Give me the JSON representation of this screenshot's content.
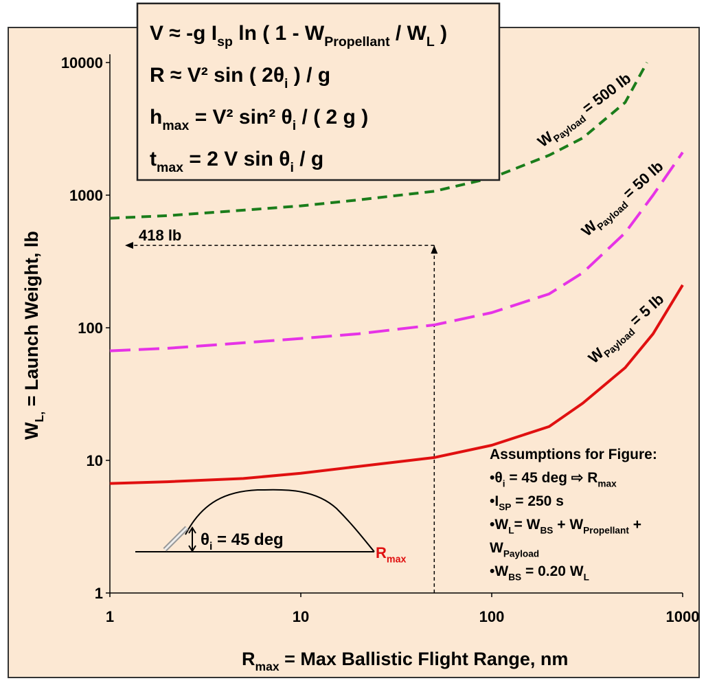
{
  "chart_data": {
    "type": "line",
    "log_x": true,
    "log_y": true,
    "equations": [
      [
        "V ≈ -g I",
        "sp",
        " ln ( 1 - W",
        "Propellant",
        " / W",
        "L",
        " )"
      ],
      [
        "R ≈ V² sin ( 2θ",
        "i",
        " ) / g"
      ],
      [
        "h",
        "max",
        " = V² sin² θ",
        "i",
        " / ( 2 g )"
      ],
      [
        "t",
        "max",
        " = 2 V sin θ",
        "i",
        " / g"
      ]
    ],
    "x_label": [
      "R",
      "max",
      " = Max Ballistic Flight Range, nm"
    ],
    "y_label": [
      "W",
      "L,",
      " = Launch Weight, lb"
    ],
    "xlim": [
      1,
      1000
    ],
    "xticks": [
      1,
      10,
      100,
      1000
    ],
    "ylim": [
      1,
      10000
    ],
    "yticks": [
      1,
      10,
      100,
      1000,
      10000
    ],
    "series": [
      {
        "label": [
          "W",
          "Payload",
          " = 500 lb"
        ],
        "color": "#1b7d1b",
        "dash": "14 9",
        "x": [
          1,
          2,
          5,
          10,
          20,
          50,
          100,
          200,
          300,
          500,
          650
        ],
        "values": [
          670,
          700,
          770,
          830,
          920,
          1070,
          1350,
          2000,
          2700,
          5000,
          10000
        ]
      },
      {
        "label": [
          "W",
          "Payload",
          " = 50 lb"
        ],
        "color": "#e633e6",
        "dash": "30 12",
        "x": [
          1,
          2,
          5,
          10,
          20,
          50,
          100,
          200,
          300,
          500,
          700,
          1000
        ],
        "values": [
          67,
          70,
          77,
          83,
          90,
          105,
          130,
          180,
          260,
          520,
          1000,
          2100
        ]
      },
      {
        "label": [
          "W",
          "Payload",
          " = 5 lb"
        ],
        "color": "#e01010",
        "dash": "none",
        "x": [
          1,
          2,
          5,
          10,
          20,
          50,
          100,
          200,
          300,
          500,
          700,
          1000
        ],
        "values": [
          6.7,
          6.9,
          7.3,
          8,
          9,
          10.5,
          13,
          18,
          27,
          50,
          90,
          210
        ]
      }
    ],
    "annotation": {
      "text": "418 lb",
      "x": 50,
      "y": 418
    },
    "inset": {
      "angle_label": [
        "θ",
        "i",
        " = 45 deg"
      ],
      "range_label": [
        "R",
        "max"
      ]
    },
    "assumptions": [
      [
        "Assumptions for Figure:"
      ],
      [
        "•θ",
        "i",
        " = 45 deg ⇨ R",
        "max"
      ],
      [
        "•I",
        "SP",
        " = 250 s"
      ],
      [
        "•W",
        "L",
        "= W",
        "BS",
        " + W",
        "Propellant",
        " +"
      ],
      [
        "W",
        "Payload"
      ],
      [
        "•W",
        "BS",
        " = 0.20 W",
        "L"
      ]
    ]
  }
}
